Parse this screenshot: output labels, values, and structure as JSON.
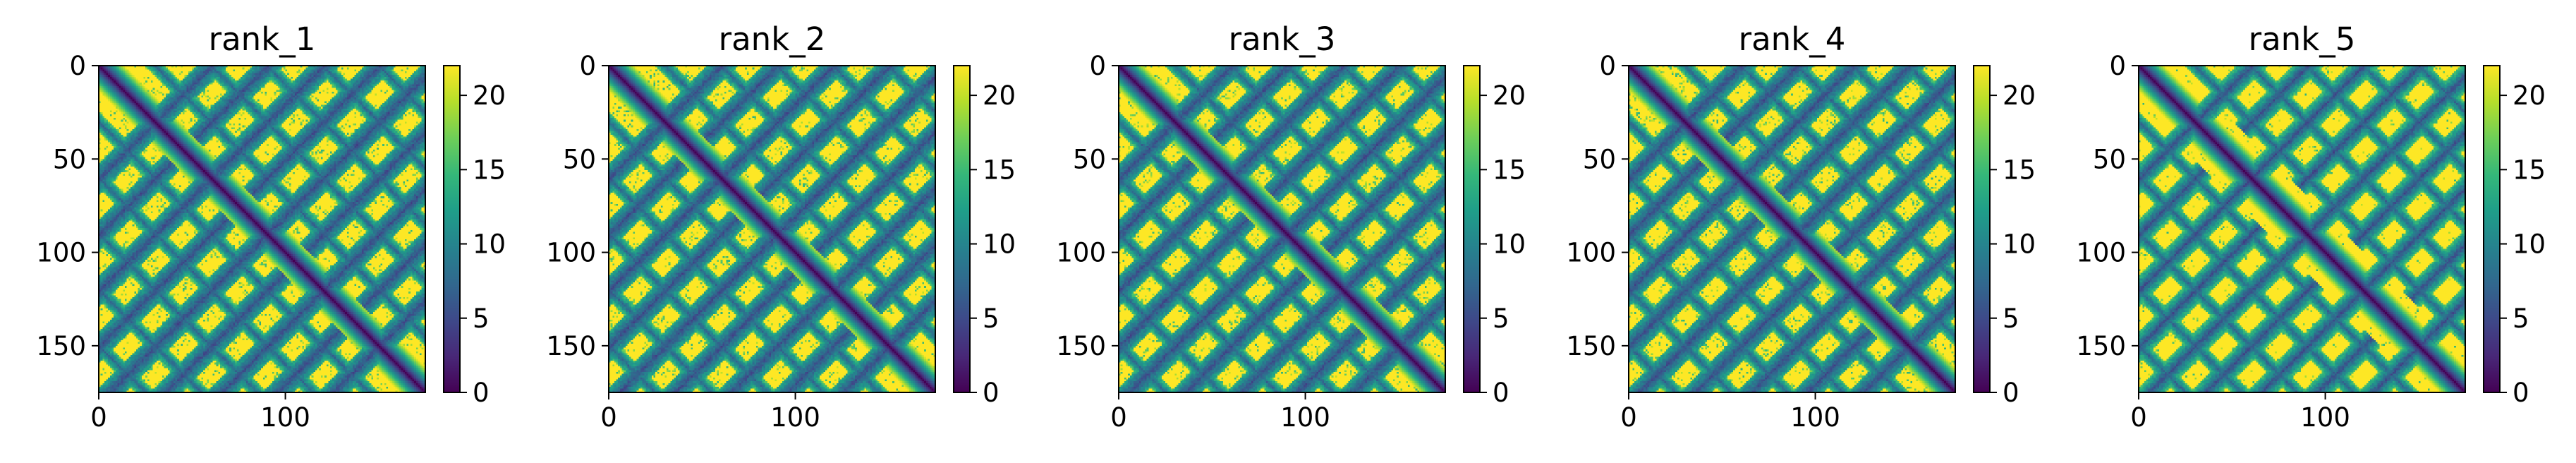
{
  "figure": {
    "colormap": "viridis",
    "colormap_stops": [
      "#440154",
      "#482878",
      "#3e4989",
      "#31688e",
      "#26828e",
      "#1f9e89",
      "#35b779",
      "#6ece58",
      "#b5de2b",
      "#fde725"
    ]
  },
  "chart_data": [
    {
      "type": "heatmap",
      "title": "rank_1",
      "xlabel": "",
      "ylabel": "",
      "matrix_size": 175,
      "xlim": [
        0,
        175
      ],
      "ylim": [
        175,
        0
      ],
      "xticks": [
        0,
        100
      ],
      "yticks": [
        0,
        50,
        100,
        150
      ],
      "colorbar": {
        "range": [
          0,
          22
        ],
        "ticks": [
          0,
          5,
          10,
          15,
          20
        ]
      },
      "structure": "Symmetric distance map: near-zero main diagonal, X-shaped medium-distance bands, saturated (~22) background"
    },
    {
      "type": "heatmap",
      "title": "rank_2",
      "xlabel": "",
      "ylabel": "",
      "matrix_size": 175,
      "xlim": [
        0,
        175
      ],
      "ylim": [
        175,
        0
      ],
      "xticks": [
        0,
        100
      ],
      "yticks": [
        0,
        50,
        100,
        150
      ],
      "colorbar": {
        "range": [
          0,
          22
        ],
        "ticks": [
          0,
          5,
          10,
          15,
          20
        ]
      },
      "structure": "Symmetric distance map: near-zero main diagonal, X-shaped medium-distance bands, saturated (~22) background"
    },
    {
      "type": "heatmap",
      "title": "rank_3",
      "xlabel": "",
      "ylabel": "",
      "matrix_size": 175,
      "xlim": [
        0,
        175
      ],
      "ylim": [
        175,
        0
      ],
      "xticks": [
        0,
        100
      ],
      "yticks": [
        0,
        50,
        100,
        150
      ],
      "colorbar": {
        "range": [
          0,
          22
        ],
        "ticks": [
          0,
          5,
          10,
          15,
          20
        ]
      },
      "structure": "Symmetric distance map: near-zero main diagonal, X-shaped medium-distance bands, saturated (~22) background"
    },
    {
      "type": "heatmap",
      "title": "rank_4",
      "xlabel": "",
      "ylabel": "",
      "matrix_size": 175,
      "xlim": [
        0,
        175
      ],
      "ylim": [
        175,
        0
      ],
      "xticks": [
        0,
        100
      ],
      "yticks": [
        0,
        50,
        100,
        150
      ],
      "colorbar": {
        "range": [
          0,
          22
        ],
        "ticks": [
          0,
          5,
          10,
          15,
          20
        ]
      },
      "structure": "Symmetric distance map: near-zero main diagonal, X-shaped medium-distance bands, saturated (~22) background"
    },
    {
      "type": "heatmap",
      "title": "rank_5",
      "xlabel": "",
      "ylabel": "",
      "matrix_size": 175,
      "xlim": [
        0,
        175
      ],
      "ylim": [
        175,
        0
      ],
      "xticks": [
        0,
        100
      ],
      "yticks": [
        0,
        50,
        100,
        150
      ],
      "colorbar": {
        "range": [
          0,
          22
        ],
        "ticks": [
          0,
          5,
          10,
          15,
          20
        ]
      },
      "structure": "Symmetric distance map: near-zero main diagonal, fewer and sharper X-shaped bands, saturated (~22) background"
    }
  ]
}
